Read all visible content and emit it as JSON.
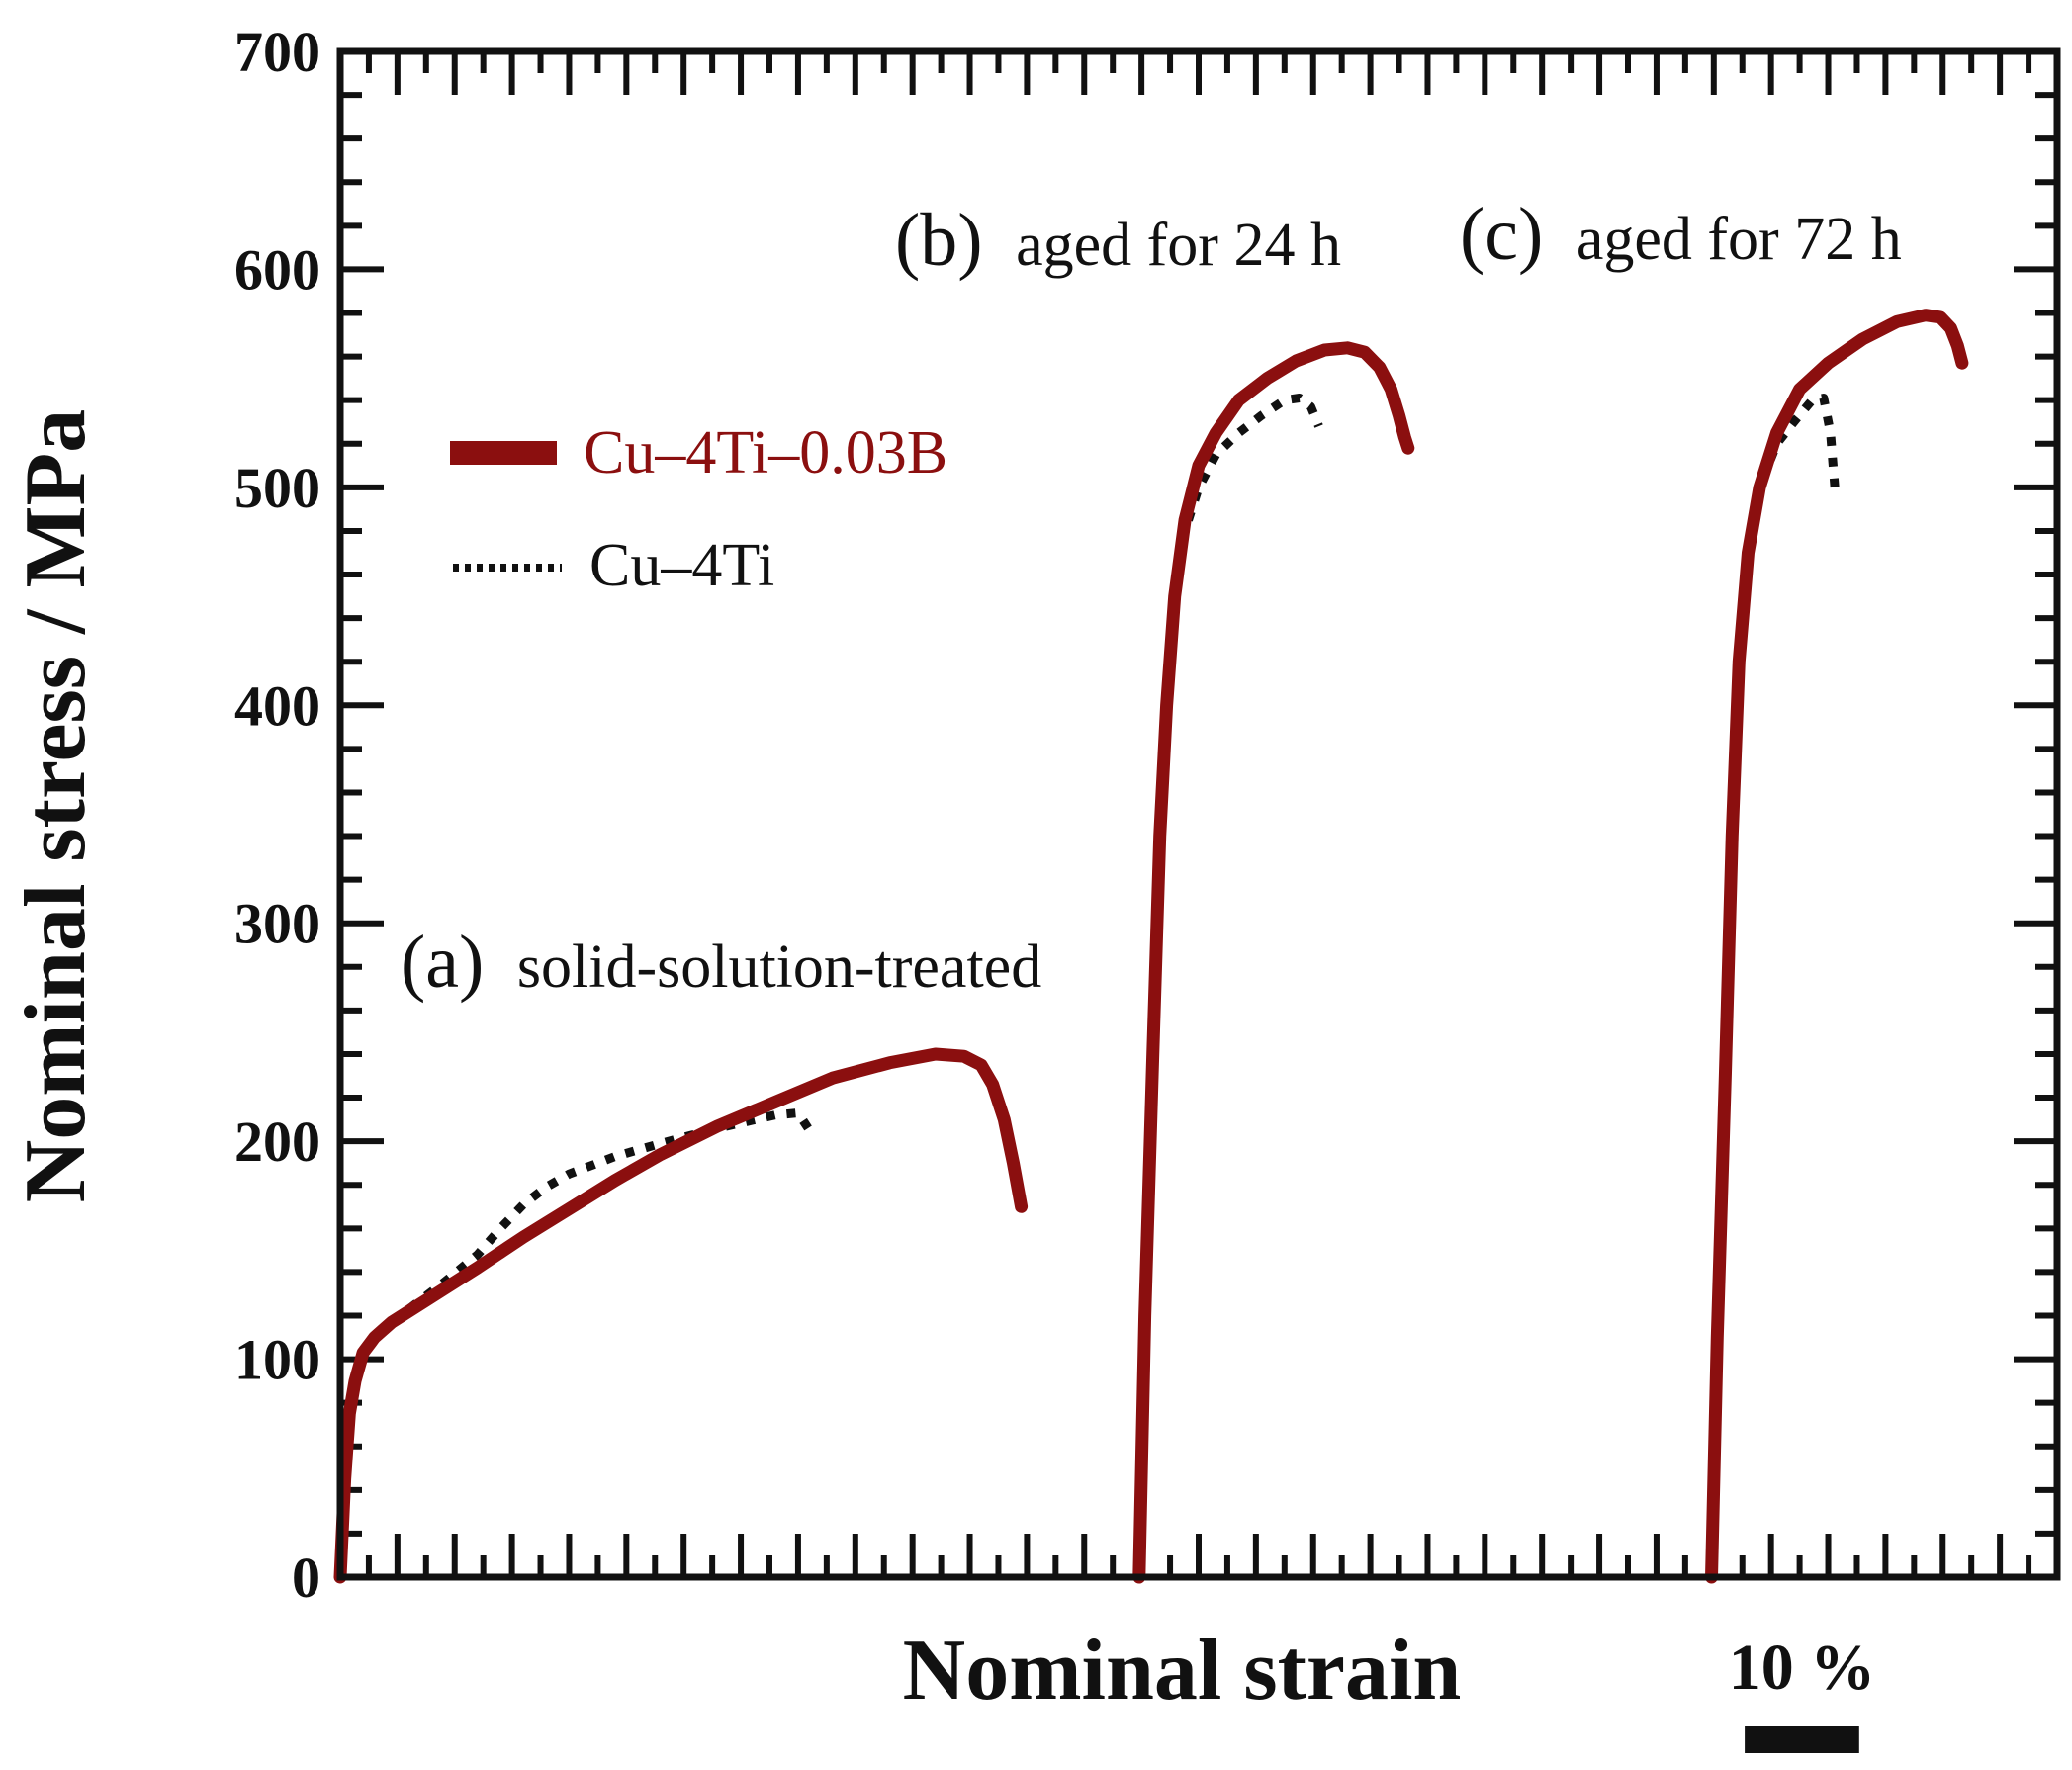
{
  "chart_data": {
    "type": "line",
    "title": "",
    "xlabel": "Nominal strain",
    "ylabel": "Nominal stress / MPa",
    "ylim": [
      0,
      700
    ],
    "yticks": [
      0,
      100,
      200,
      300,
      400,
      500,
      600,
      700
    ],
    "xlim": [
      0,
      150
    ],
    "grid": false,
    "legend_position": "upper-left",
    "scale_bar": {
      "label": "10 %",
      "strain": 10
    },
    "colors": {
      "boron": "#8b0f0f",
      "base": "#111111"
    },
    "annotations": [
      {
        "id": "a",
        "paren": "(a)",
        "text": "solid-solution-treated"
      },
      {
        "id": "b",
        "paren": "(b)",
        "text": "aged for 24 h"
      },
      {
        "id": "c",
        "paren": "(c)",
        "text": "aged for 72 h"
      }
    ],
    "series": [
      {
        "name": "Cu–4Ti–0.03B",
        "legend": true,
        "style": "solid",
        "color": "#8b0f0f",
        "x": [
          0,
          0.4,
          0.8,
          1.3,
          2,
          3,
          4.5,
          6,
          9,
          12,
          16,
          20,
          24,
          28,
          33,
          38,
          43,
          48,
          52,
          54.5,
          56,
          57,
          58,
          58.8,
          59.5
        ],
        "y": [
          0,
          45,
          75,
          90,
          103,
          110,
          117,
          122,
          132,
          142,
          156,
          169,
          182,
          194,
          207,
          218,
          229,
          236,
          240,
          239,
          235,
          226,
          210,
          190,
          170
        ]
      },
      {
        "name": "Cu–4Ti",
        "legend": true,
        "style": "dotted",
        "color": "#111111",
        "x": [
          0,
          0.4,
          0.8,
          1.3,
          2,
          3,
          4.5,
          6,
          9,
          12,
          14,
          16,
          18,
          20,
          24,
          28,
          33,
          38,
          40,
          41
        ],
        "y": [
          0,
          45,
          75,
          90,
          103,
          110,
          117,
          123,
          135,
          148,
          160,
          171,
          179,
          185,
          193,
          199,
          206,
          212,
          213,
          205
        ]
      },
      {
        "name": "Cu–4Ti–0.03B aged 24 h",
        "legend": false,
        "style": "solid",
        "color": "#8b0f0f",
        "x": [
          69.8,
          70.3,
          71,
          71.6,
          72.2,
          72.9,
          73.8,
          75,
          76.5,
          78.5,
          81,
          83.5,
          86,
          88,
          89.5,
          90.8,
          91.8,
          92.5,
          93,
          93.3
        ],
        "y": [
          0,
          120,
          240,
          340,
          400,
          450,
          485,
          510,
          525,
          540,
          550,
          558,
          563,
          564,
          562,
          555,
          545,
          533,
          523,
          518
        ]
      },
      {
        "name": "Cu–4Ti aged 24 h",
        "legend": false,
        "style": "dotted",
        "color": "#111111",
        "x": [
          69.8,
          70.3,
          71,
          71.6,
          72.2,
          72.9,
          73.8,
          75,
          76.5,
          78.5,
          80.5,
          82.5,
          83.8,
          84.8,
          85.5
        ],
        "y": [
          0,
          120,
          240,
          340,
          400,
          450,
          480,
          500,
          515,
          525,
          533,
          540,
          541,
          537,
          528
        ]
      },
      {
        "name": "Cu–4Ti–0.03B aged 72 h",
        "legend": false,
        "style": "solid",
        "color": "#8b0f0f",
        "x": [
          119.8,
          120.3,
          121,
          121.6,
          122.2,
          123,
          124,
          125.5,
          127.5,
          130,
          133,
          136,
          138.5,
          139.8,
          140.7,
          141.3,
          141.7
        ],
        "y": [
          0,
          110,
          230,
          340,
          420,
          470,
          500,
          525,
          545,
          557,
          568,
          576,
          579,
          578,
          573,
          565,
          557
        ]
      },
      {
        "name": "Cu–4Ti aged 72 h",
        "legend": false,
        "style": "dotted",
        "color": "#111111",
        "x": [
          119.8,
          120.3,
          121,
          121.6,
          122.2,
          123,
          124,
          125.5,
          127,
          128.6,
          129.6,
          130.2,
          130.6
        ],
        "y": [
          0,
          110,
          230,
          340,
          420,
          470,
          500,
          520,
          530,
          540,
          541,
          525,
          498
        ]
      }
    ]
  }
}
